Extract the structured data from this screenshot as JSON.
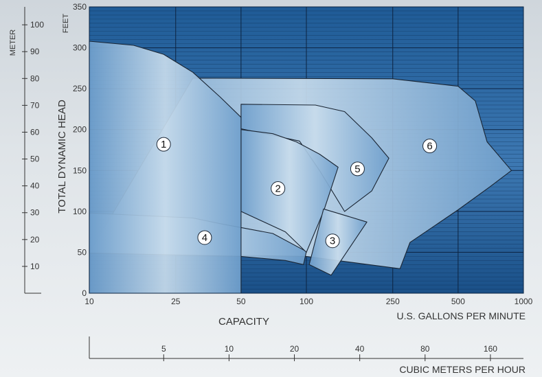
{
  "chart_data": {
    "type": "area",
    "title": "",
    "ylabel": "TOTAL DYNAMIC HEAD",
    "y_unit_left": "METER",
    "y_unit_right": "FEET",
    "xlabel": "CAPACITY",
    "x_unit_top": "U.S. GALLONS PER MINUTE",
    "x_unit_bottom": "CUBIC METERS PER HOUR",
    "x_scale": "log",
    "xlim": [
      10,
      1000
    ],
    "ylim": [
      0,
      350
    ],
    "x_ticks": [
      "10",
      "25",
      "50",
      "100",
      "250",
      "500",
      "1000"
    ],
    "x_tick_values": [
      10,
      25,
      50,
      100,
      250,
      500,
      1000
    ],
    "y_ticks": [
      "0",
      "50",
      "100",
      "150",
      "200",
      "250",
      "300",
      "350"
    ],
    "y_tick_values": [
      0,
      50,
      100,
      150,
      200,
      250,
      300,
      350
    ],
    "meter_ticks": [
      "10",
      "20",
      "30",
      "40",
      "50",
      "60",
      "70",
      "80",
      "90",
      "100"
    ],
    "meter_tick_values": [
      10,
      20,
      30,
      40,
      50,
      60,
      70,
      80,
      90,
      100
    ],
    "cubic_ticks": [
      "5",
      "10",
      "20",
      "40",
      "80",
      "160"
    ],
    "cubic_tick_values": [
      5,
      10,
      20,
      40,
      80,
      160
    ],
    "grid": true,
    "colors": {
      "plot_dark": "#1e5a94",
      "plot_mid": "#4d86bd",
      "region_light": "#c8dcec",
      "region_mid": "#6f9fcc",
      "outline": "#1a2533"
    },
    "regions": [
      {
        "label": "1",
        "label_at": {
          "x": 22,
          "y": 182
        },
        "points": [
          [
            10,
            308
          ],
          [
            16,
            303
          ],
          [
            22,
            292
          ],
          [
            30,
            270
          ],
          [
            40,
            240
          ],
          [
            50,
            215
          ],
          [
            50,
            0
          ],
          [
            10,
            0
          ]
        ]
      },
      {
        "label": "2",
        "label_at": {
          "x": 74,
          "y": 128
        },
        "points": [
          [
            50,
            200
          ],
          [
            70,
            195
          ],
          [
            90,
            185
          ],
          [
            115,
            170
          ],
          [
            140,
            154
          ],
          [
            120,
            100
          ],
          [
            100,
            50
          ],
          [
            80,
            75
          ],
          [
            50,
            100
          ]
        ]
      },
      {
        "label": "3",
        "label_at": {
          "x": 132,
          "y": 64
        },
        "points": [
          [
            120,
            103
          ],
          [
            190,
            87
          ],
          [
            130,
            22
          ],
          [
            103,
            35
          ]
        ]
      },
      {
        "label": "4",
        "label_at": {
          "x": 34,
          "y": 68
        },
        "points": [
          [
            10,
            98
          ],
          [
            30,
            92
          ],
          [
            40,
            85
          ],
          [
            70,
            73
          ],
          [
            100,
            51
          ],
          [
            97,
            35
          ],
          [
            80,
            40
          ],
          [
            50,
            45
          ],
          [
            10,
            49
          ]
        ]
      },
      {
        "label": "5",
        "label_at": {
          "x": 172,
          "y": 152
        },
        "points": [
          [
            50,
            231
          ],
          [
            110,
            230
          ],
          [
            150,
            222
          ],
          [
            200,
            190
          ],
          [
            240,
            165
          ],
          [
            200,
            125
          ],
          [
            150,
            100
          ],
          [
            115,
            150
          ],
          [
            93,
            186
          ],
          [
            50,
            201
          ]
        ]
      },
      {
        "label": "6",
        "label_at": {
          "x": 370,
          "y": 180
        },
        "points": [
          [
            30,
            263
          ],
          [
            250,
            262
          ],
          [
            500,
            253
          ],
          [
            600,
            235
          ],
          [
            680,
            185
          ],
          [
            880,
            150
          ],
          [
            700,
            130
          ],
          [
            500,
            102
          ],
          [
            300,
            62
          ],
          [
            270,
            30
          ],
          [
            100,
            45
          ],
          [
            10,
            49
          ]
        ]
      }
    ]
  }
}
